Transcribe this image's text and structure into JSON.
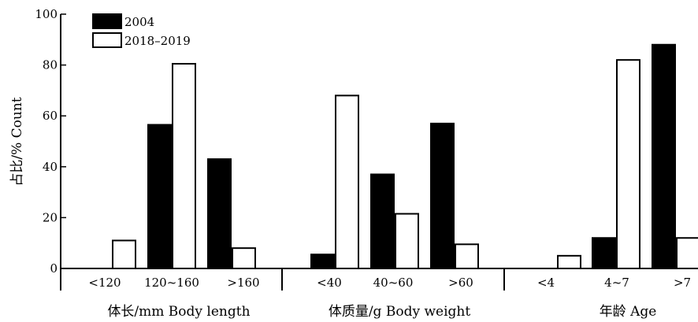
{
  "chart_data": {
    "type": "bar",
    "ylabel": "占比/% Count",
    "ylim": [
      0,
      100
    ],
    "yticks": [
      "0",
      "20",
      "40",
      "60",
      "80",
      "100"
    ],
    "grid": false,
    "legend_position": "top-left",
    "legend": [
      {
        "name": "2004",
        "fill": "#000000"
      },
      {
        "name": "2018–2019",
        "fill": "#ffffff"
      }
    ],
    "groups": [
      {
        "label": "体长/mm Body length",
        "categories": [
          "<120",
          "120~160",
          ">160"
        ],
        "series": [
          {
            "name": "2004",
            "values": [
              0,
              56.5,
              43
            ]
          },
          {
            "name": "2018–2019",
            "values": [
              11,
              80.5,
              8
            ]
          }
        ]
      },
      {
        "label": "体质量/g Body weight",
        "categories": [
          "<40",
          "40~60",
          ">60"
        ],
        "series": [
          {
            "name": "2004",
            "values": [
              5.5,
              37,
              57
            ]
          },
          {
            "name": "2018–2019",
            "values": [
              68,
              21.5,
              9.5
            ]
          }
        ]
      },
      {
        "label": "年龄 Age",
        "categories": [
          "<4",
          "4~7",
          ">7"
        ],
        "series": [
          {
            "name": "2004",
            "values": [
              0,
              12,
              88
            ]
          },
          {
            "name": "2018–2019",
            "values": [
              5,
              82,
              12
            ]
          }
        ]
      }
    ]
  }
}
